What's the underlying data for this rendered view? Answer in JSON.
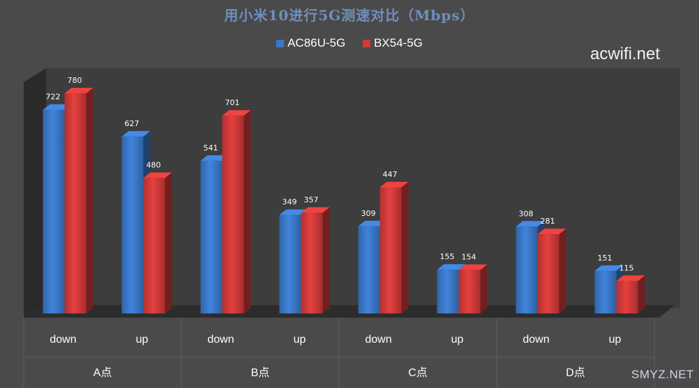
{
  "chart_data": {
    "type": "bar",
    "title": "用小米10进行5G测速对比（Mbps）",
    "groups": [
      "A点",
      "B点",
      "C点",
      "D点"
    ],
    "subcategories": [
      "down",
      "up"
    ],
    "categories": [
      "A点 down",
      "A点 up",
      "B点 down",
      "B点 up",
      "C点 down",
      "C点 up",
      "D点 down",
      "D点 up"
    ],
    "series": [
      {
        "name": "AC86U-5G",
        "values": [
          722,
          627,
          541,
          349,
          309,
          155,
          308,
          151
        ],
        "color": "#3a78c8"
      },
      {
        "name": "BX54-5G",
        "values": [
          780,
          480,
          701,
          357,
          447,
          154,
          281,
          115
        ],
        "color": "#d03a38"
      }
    ],
    "ylim": [
      0,
      800
    ],
    "grid": false,
    "legend_position": "top-center",
    "xlabel": "",
    "ylabel": ""
  },
  "watermarks": {
    "top": "acwifi.net",
    "bottom": "SMYZ.NET"
  }
}
